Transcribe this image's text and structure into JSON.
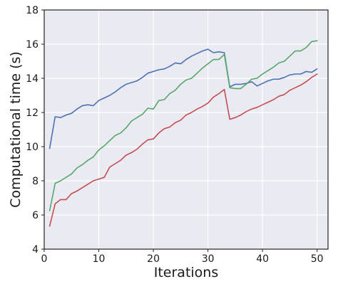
{
  "chart_data": {
    "type": "line",
    "title": "",
    "xlabel": "Iterations",
    "ylabel": "Computational time (s)",
    "xlim": [
      0,
      52
    ],
    "ylim": [
      4,
      18
    ],
    "xticks": [
      0,
      10,
      20,
      30,
      40,
      50
    ],
    "yticks": [
      4,
      6,
      8,
      10,
      12,
      14,
      16,
      18
    ],
    "grid": true,
    "legend": "none",
    "x": [
      1,
      2,
      3,
      4,
      5,
      6,
      7,
      8,
      9,
      10,
      11,
      12,
      13,
      14,
      15,
      16,
      17,
      18,
      19,
      20,
      21,
      22,
      23,
      24,
      25,
      26,
      27,
      28,
      29,
      30,
      31,
      32,
      33,
      34,
      35,
      36,
      37,
      38,
      39,
      40,
      41,
      42,
      43,
      44,
      45,
      46,
      47,
      48,
      49,
      50
    ],
    "series": [
      {
        "color": "#4c72b0",
        "values": [
          9.9,
          11.75,
          11.7,
          11.85,
          11.95,
          12.2,
          12.4,
          12.45,
          12.4,
          12.7,
          12.85,
          13.0,
          13.2,
          13.45,
          13.65,
          13.75,
          13.85,
          14.05,
          14.3,
          14.4,
          14.5,
          14.55,
          14.7,
          14.9,
          14.85,
          15.1,
          15.3,
          15.45,
          15.6,
          15.7,
          15.5,
          15.55,
          15.5,
          13.5,
          13.65,
          13.65,
          13.7,
          13.8,
          13.55,
          13.7,
          13.85,
          13.95,
          13.95,
          14.05,
          14.2,
          14.25,
          14.25,
          14.4,
          14.35,
          14.55
        ]
      },
      {
        "color": "#55a868",
        "values": [
          6.25,
          7.85,
          8.0,
          8.2,
          8.4,
          8.75,
          8.95,
          9.2,
          9.4,
          9.8,
          10.05,
          10.35,
          10.65,
          10.8,
          11.1,
          11.5,
          11.7,
          11.9,
          12.25,
          12.2,
          12.7,
          12.75,
          13.1,
          13.3,
          13.65,
          13.9,
          14.0,
          14.3,
          14.6,
          14.85,
          15.1,
          15.1,
          15.4,
          13.45,
          13.4,
          13.4,
          13.65,
          13.95,
          14.0,
          14.25,
          14.45,
          14.65,
          14.9,
          15.0,
          15.3,
          15.6,
          15.6,
          15.8,
          16.15,
          16.2
        ]
      },
      {
        "color": "#c44e52",
        "values": [
          5.35,
          6.65,
          6.9,
          6.9,
          7.25,
          7.4,
          7.6,
          7.8,
          8.0,
          8.1,
          8.2,
          8.8,
          9.0,
          9.2,
          9.5,
          9.65,
          9.85,
          10.15,
          10.4,
          10.45,
          10.8,
          11.05,
          11.15,
          11.4,
          11.55,
          11.85,
          12.0,
          12.2,
          12.35,
          12.55,
          12.9,
          13.1,
          13.35,
          11.6,
          11.7,
          11.85,
          12.05,
          12.2,
          12.3,
          12.45,
          12.6,
          12.75,
          12.95,
          13.05,
          13.3,
          13.45,
          13.6,
          13.8,
          14.05,
          14.25
        ]
      }
    ]
  }
}
